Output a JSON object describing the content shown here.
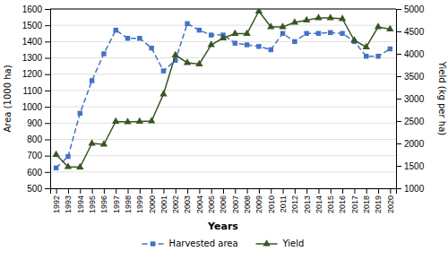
{
  "chart_data": {
    "type": "line",
    "xlabel": "Years",
    "ylabel": "Area (1000 ha)",
    "y2label": "Yield (kg per ha)",
    "x": [
      1992,
      1993,
      1994,
      1995,
      1996,
      1997,
      1998,
      1999,
      2000,
      2001,
      2002,
      2003,
      2004,
      2005,
      2006,
      2007,
      2008,
      2009,
      2010,
      2011,
      2012,
      2013,
      2014,
      2015,
      2016,
      2017,
      2018,
      2019,
      2020
    ],
    "xlim": [
      1991.5,
      2020.5
    ],
    "xticks": [
      1992,
      1993,
      1994,
      1995,
      1996,
      1997,
      1998,
      1999,
      2000,
      2001,
      2002,
      2003,
      2004,
      2005,
      2006,
      2007,
      2008,
      2009,
      2010,
      2011,
      2012,
      2013,
      2014,
      2015,
      2016,
      2017,
      2018,
      2019,
      2020
    ],
    "ylim": [
      500,
      1600
    ],
    "yticks": [
      500,
      600,
      700,
      800,
      900,
      1000,
      1100,
      1200,
      1300,
      1400,
      1500,
      1600
    ],
    "y2lim": [
      1000,
      5000
    ],
    "y2ticks": [
      1000,
      1500,
      2000,
      2500,
      3000,
      3500,
      4000,
      4500,
      5000
    ],
    "grid": true,
    "legend": "bottom",
    "series": [
      {
        "name": "Harvested area",
        "color": "#4472C4",
        "marker": "square",
        "line_style": "dashed",
        "values": [
          625,
          695,
          960,
          1160,
          1325,
          1470,
          1420,
          1420,
          1360,
          1220,
          1285,
          1510,
          1470,
          1440,
          1440,
          1390,
          1380,
          1370,
          1350,
          1450,
          1400,
          1450,
          1450,
          1455,
          1450,
          1400,
          1310,
          1310,
          1355
        ]
      },
      {
        "name": "Yield",
        "axis": "y2",
        "color": "#375623",
        "marker": "triangle",
        "line_style": "solid",
        "values": [
          1750,
          1480,
          1470,
          2000,
          1980,
          2490,
          2480,
          2490,
          2500,
          3100,
          3970,
          3800,
          3770,
          4200,
          4350,
          4450,
          4450,
          4950,
          4600,
          4600,
          4700,
          4750,
          4800,
          4800,
          4780,
          4300,
          4150,
          4600,
          4550
        ]
      }
    ]
  }
}
